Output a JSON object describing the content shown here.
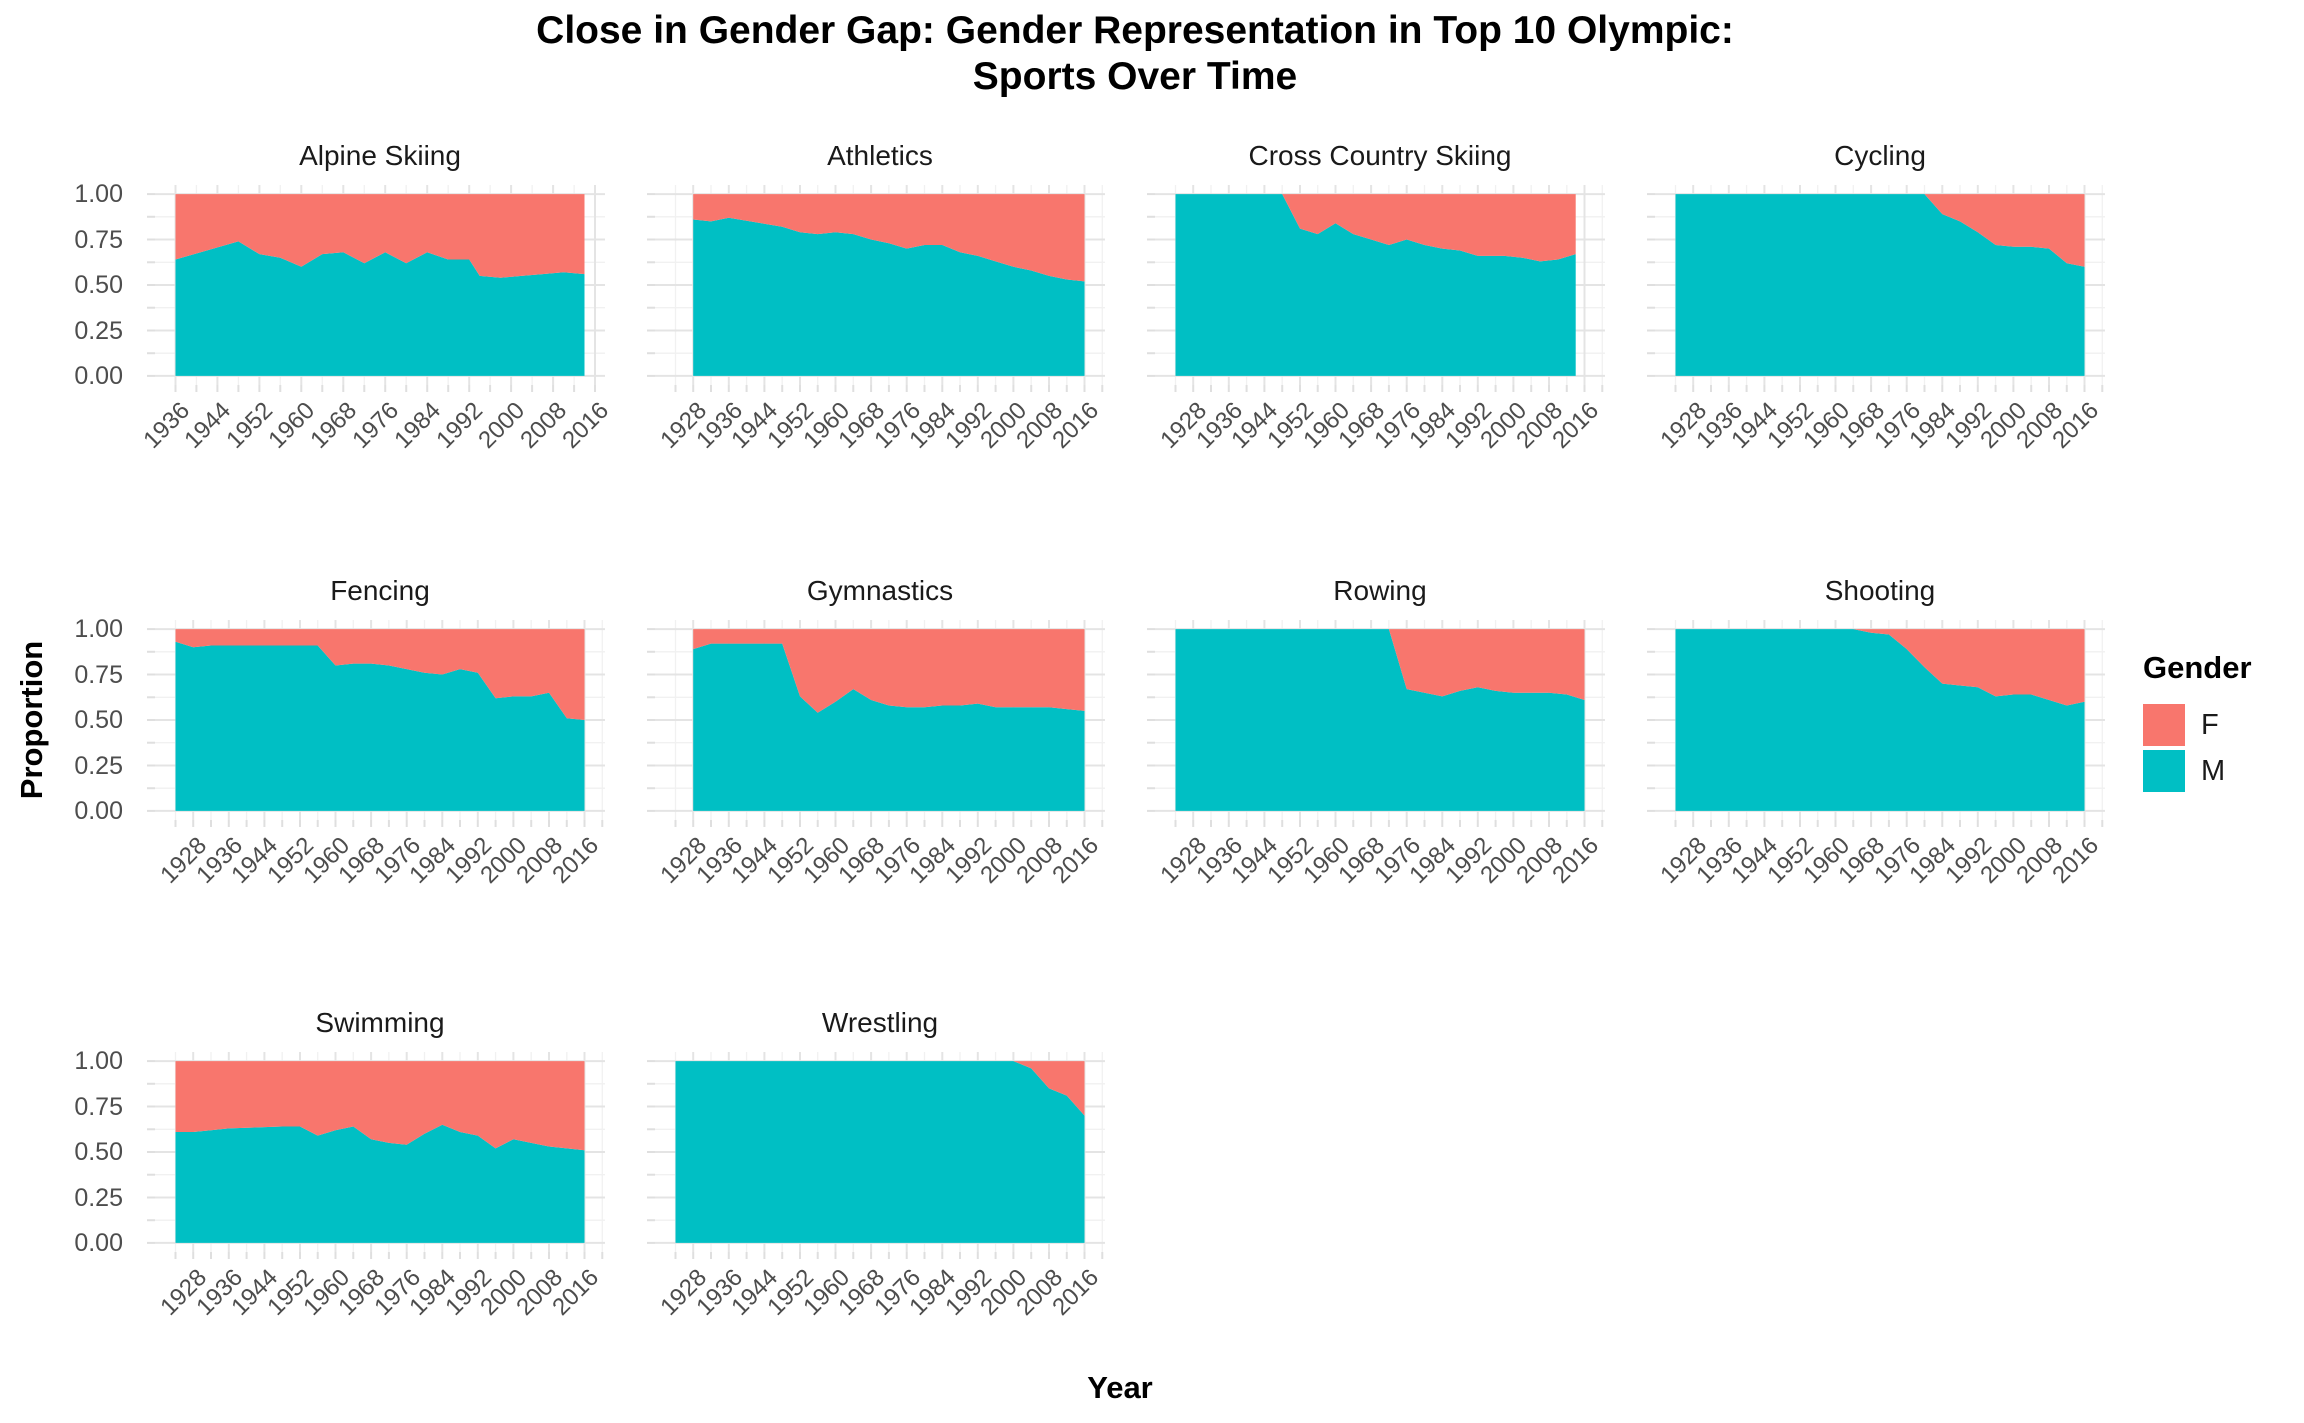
{
  "title": {
    "line1": "Close in Gender Gap: Gender Representation in Top 10 Olympic:",
    "line2": "Sports Over Time"
  },
  "axis": {
    "y_label": "Proportion",
    "x_label": "Year",
    "y_ticks": [
      "1.00",
      "0.75",
      "0.50",
      "0.25",
      "0.00"
    ]
  },
  "legend": {
    "title": "Gender",
    "items": [
      {
        "label": "F",
        "color": "#F8766D"
      },
      {
        "label": "M",
        "color": "#00BFC4"
      }
    ]
  },
  "colors": {
    "female": "#F8766D",
    "male": "#00BFC4",
    "grid_major": "#E4E4E4",
    "grid_minor": "#F1F1F1",
    "tick_stub": "#DFDFDF",
    "tick_label": "#4D4D4D"
  },
  "chart_data": {
    "type": "area",
    "subtype": "stacked-proportion",
    "stack": "M bottom (teal), F on top (salmon), stacked to 1.0",
    "ylim": [
      0,
      1
    ],
    "y_major_ticks": [
      0,
      0.25,
      0.5,
      0.75,
      1.0
    ],
    "grid": "light gray major and minor gridlines on white background",
    "legend_position": "right",
    "facets": [
      {
        "title": "Alpine Skiing",
        "row": 0,
        "col": 0,
        "domain": [
          1932.1,
          2017.9
        ],
        "x_major": [
          1936,
          1944,
          1952,
          1960,
          1968,
          1976,
          1984,
          1992,
          2000,
          2008,
          2016
        ],
        "x_minor": [
          1940,
          1948,
          1956,
          1964,
          1972,
          1980,
          1988,
          1996,
          2004,
          2012
        ],
        "years": [
          1936,
          1948,
          1952,
          1956,
          1960,
          1964,
          1968,
          1972,
          1976,
          1980,
          1984,
          1988,
          1992,
          1994,
          1998,
          2002,
          2006,
          2010,
          2014
        ],
        "male": [
          0.64,
          0.74,
          0.67,
          0.65,
          0.6,
          0.67,
          0.68,
          0.62,
          0.68,
          0.62,
          0.68,
          0.64,
          0.64,
          0.55,
          0.54,
          0.55,
          0.56,
          0.57,
          0.56
        ]
      },
      {
        "title": "Athletics",
        "row": 0,
        "col": 1,
        "domain": [
          1919.4,
          2020.6
        ],
        "x_major": [
          1928,
          1936,
          1944,
          1952,
          1960,
          1968,
          1976,
          1984,
          1992,
          2000,
          2008,
          2016
        ],
        "x_minor": [
          1924,
          1932,
          1940,
          1948,
          1956,
          1964,
          1972,
          1980,
          1988,
          1996,
          2004,
          2012,
          2020
        ],
        "years": [
          1928,
          1932,
          1936,
          1948,
          1952,
          1956,
          1960,
          1964,
          1968,
          1972,
          1976,
          1980,
          1984,
          1988,
          1992,
          1996,
          2000,
          2004,
          2008,
          2012,
          2016
        ],
        "male": [
          0.86,
          0.85,
          0.87,
          0.82,
          0.79,
          0.78,
          0.79,
          0.78,
          0.75,
          0.73,
          0.7,
          0.72,
          0.72,
          0.68,
          0.66,
          0.63,
          0.6,
          0.58,
          0.55,
          0.53,
          0.52
        ]
      },
      {
        "title": "Cross Country Skiing",
        "row": 0,
        "col": 2,
        "domain": [
          1919.4,
          2020.6
        ],
        "x_major": [
          1928,
          1936,
          1944,
          1952,
          1960,
          1968,
          1976,
          1984,
          1992,
          2000,
          2008,
          2016
        ],
        "x_minor": [
          1924,
          1932,
          1940,
          1948,
          1956,
          1964,
          1972,
          1980,
          1988,
          1996,
          2004,
          2012,
          2020
        ],
        "years": [
          1924,
          1928,
          1932,
          1936,
          1948,
          1952,
          1956,
          1960,
          1964,
          1968,
          1972,
          1976,
          1980,
          1984,
          1988,
          1992,
          1994,
          1998,
          2002,
          2006,
          2010,
          2014
        ],
        "male": [
          1,
          1,
          1,
          1,
          1,
          0.81,
          0.78,
          0.84,
          0.78,
          0.75,
          0.72,
          0.75,
          0.72,
          0.7,
          0.69,
          0.66,
          0.66,
          0.66,
          0.65,
          0.63,
          0.64,
          0.67
        ]
      },
      {
        "title": "Cycling",
        "row": 0,
        "col": 3,
        "domain": [
          1919.4,
          2020.6
        ],
        "x_major": [
          1928,
          1936,
          1944,
          1952,
          1960,
          1968,
          1976,
          1984,
          1992,
          2000,
          2008,
          2016
        ],
        "x_minor": [
          1924,
          1932,
          1940,
          1948,
          1956,
          1964,
          1972,
          1980,
          1988,
          1996,
          2004,
          2012,
          2020
        ],
        "years": [
          1924,
          1928,
          1932,
          1936,
          1948,
          1952,
          1956,
          1960,
          1964,
          1968,
          1972,
          1976,
          1980,
          1984,
          1988,
          1992,
          1996,
          2000,
          2004,
          2008,
          2012,
          2016
        ],
        "male": [
          1,
          1,
          1,
          1,
          1,
          1,
          1,
          1,
          1,
          1,
          1,
          1,
          1,
          0.89,
          0.85,
          0.79,
          0.72,
          0.71,
          0.71,
          0.7,
          0.62,
          0.6
        ]
      },
      {
        "title": "Fencing",
        "row": 1,
        "col": 0,
        "domain": [
          1919.4,
          2020.6
        ],
        "x_major": [
          1928,
          1936,
          1944,
          1952,
          1960,
          1968,
          1976,
          1984,
          1992,
          2000,
          2008,
          2016
        ],
        "x_minor": [
          1924,
          1932,
          1940,
          1948,
          1956,
          1964,
          1972,
          1980,
          1988,
          1996,
          2004,
          2012,
          2020
        ],
        "years": [
          1924,
          1928,
          1932,
          1936,
          1948,
          1952,
          1956,
          1960,
          1964,
          1968,
          1972,
          1976,
          1980,
          1984,
          1988,
          1992,
          1996,
          2000,
          2004,
          2008,
          2012,
          2016
        ],
        "male": [
          0.93,
          0.9,
          0.91,
          0.91,
          0.91,
          0.91,
          0.91,
          0.8,
          0.81,
          0.81,
          0.8,
          0.78,
          0.76,
          0.75,
          0.78,
          0.76,
          0.62,
          0.63,
          0.63,
          0.65,
          0.51,
          0.5
        ]
      },
      {
        "title": "Gymnastics",
        "row": 1,
        "col": 1,
        "domain": [
          1919.4,
          2020.6
        ],
        "x_major": [
          1928,
          1936,
          1944,
          1952,
          1960,
          1968,
          1976,
          1984,
          1992,
          2000,
          2008,
          2016
        ],
        "x_minor": [
          1924,
          1932,
          1940,
          1948,
          1956,
          1964,
          1972,
          1980,
          1988,
          1996,
          2004,
          2012,
          2020
        ],
        "years": [
          1928,
          1932,
          1936,
          1948,
          1952,
          1956,
          1960,
          1964,
          1968,
          1972,
          1976,
          1980,
          1984,
          1988,
          1992,
          1996,
          2000,
          2004,
          2008,
          2012,
          2016
        ],
        "male": [
          0.89,
          0.92,
          0.92,
          0.92,
          0.63,
          0.54,
          0.6,
          0.67,
          0.61,
          0.58,
          0.57,
          0.57,
          0.58,
          0.58,
          0.59,
          0.57,
          0.57,
          0.57,
          0.57,
          0.56,
          0.55
        ]
      },
      {
        "title": "Rowing",
        "row": 1,
        "col": 2,
        "domain": [
          1919.4,
          2020.6
        ],
        "x_major": [
          1928,
          1936,
          1944,
          1952,
          1960,
          1968,
          1976,
          1984,
          1992,
          2000,
          2008,
          2016
        ],
        "x_minor": [
          1924,
          1932,
          1940,
          1948,
          1956,
          1964,
          1972,
          1980,
          1988,
          1996,
          2004,
          2012,
          2020
        ],
        "years": [
          1924,
          1928,
          1932,
          1936,
          1948,
          1952,
          1956,
          1960,
          1964,
          1968,
          1972,
          1976,
          1980,
          1984,
          1988,
          1992,
          1996,
          2000,
          2004,
          2008,
          2012,
          2016
        ],
        "male": [
          1,
          1,
          1,
          1,
          1,
          1,
          1,
          1,
          1,
          1,
          1,
          0.67,
          0.65,
          0.63,
          0.66,
          0.68,
          0.66,
          0.65,
          0.65,
          0.65,
          0.64,
          0.61
        ]
      },
      {
        "title": "Shooting",
        "row": 1,
        "col": 3,
        "domain": [
          1919.4,
          2020.6
        ],
        "x_major": [
          1928,
          1936,
          1944,
          1952,
          1960,
          1968,
          1976,
          1984,
          1992,
          2000,
          2008,
          2016
        ],
        "x_minor": [
          1924,
          1932,
          1940,
          1948,
          1956,
          1964,
          1972,
          1980,
          1988,
          1996,
          2004,
          2012,
          2020
        ],
        "years": [
          1924,
          1928,
          1932,
          1936,
          1948,
          1952,
          1956,
          1960,
          1964,
          1968,
          1972,
          1976,
          1980,
          1984,
          1988,
          1992,
          1996,
          2000,
          2004,
          2008,
          2012,
          2016
        ],
        "male": [
          1,
          1,
          1,
          1,
          1,
          1,
          1,
          1,
          1,
          0.98,
          0.97,
          0.89,
          0.79,
          0.7,
          0.69,
          0.68,
          0.63,
          0.64,
          0.64,
          0.61,
          0.58,
          0.6
        ]
      },
      {
        "title": "Swimming",
        "row": 2,
        "col": 0,
        "domain": [
          1919.4,
          2020.6
        ],
        "x_major": [
          1928,
          1936,
          1944,
          1952,
          1960,
          1968,
          1976,
          1984,
          1992,
          2000,
          2008,
          2016
        ],
        "x_minor": [
          1924,
          1932,
          1940,
          1948,
          1956,
          1964,
          1972,
          1980,
          1988,
          1996,
          2004,
          2012,
          2020
        ],
        "years": [
          1924,
          1928,
          1932,
          1936,
          1948,
          1952,
          1956,
          1960,
          1964,
          1968,
          1972,
          1976,
          1980,
          1984,
          1988,
          1992,
          1996,
          2000,
          2004,
          2008,
          2012,
          2016
        ],
        "male": [
          0.61,
          0.61,
          0.62,
          0.63,
          0.64,
          0.64,
          0.59,
          0.62,
          0.64,
          0.57,
          0.55,
          0.54,
          0.6,
          0.65,
          0.61,
          0.59,
          0.52,
          0.57,
          0.55,
          0.53,
          0.52,
          0.51
        ]
      },
      {
        "title": "Wrestling",
        "row": 2,
        "col": 1,
        "domain": [
          1919.4,
          2020.6
        ],
        "x_major": [
          1928,
          1936,
          1944,
          1952,
          1960,
          1968,
          1976,
          1984,
          1992,
          2000,
          2008,
          2016
        ],
        "x_minor": [
          1924,
          1932,
          1940,
          1948,
          1956,
          1964,
          1972,
          1980,
          1988,
          1996,
          2004,
          2012,
          2020
        ],
        "years": [
          1924,
          1928,
          1932,
          1936,
          1948,
          1952,
          1956,
          1960,
          1964,
          1968,
          1972,
          1976,
          1980,
          1984,
          1988,
          1992,
          1996,
          2000,
          2004,
          2008,
          2012,
          2016
        ],
        "male": [
          1,
          1,
          1,
          1,
          1,
          1,
          1,
          1,
          1,
          1,
          1,
          1,
          1,
          1,
          1,
          1,
          1,
          1,
          0.96,
          0.85,
          0.81,
          0.7
        ]
      }
    ]
  }
}
